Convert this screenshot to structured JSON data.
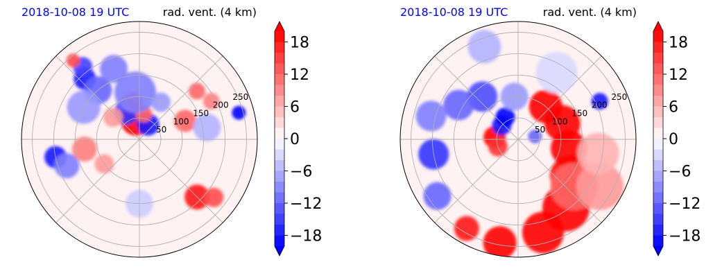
{
  "colors": {
    "pos_strong": "#ff0000",
    "neg_strong": "#0000ff",
    "neutral": "#fff2f2",
    "title_left": "#0000ff",
    "grid": "#b0b0b0"
  },
  "chart_data": [
    {
      "type": "heatmap",
      "projection": "polar",
      "title_left": "2018-10-08 19 UTC",
      "title_right": "rad. vent. (4 km)",
      "radial_ticks": [
        50,
        100,
        150,
        200,
        250
      ],
      "rmax": 275,
      "angular_grid_deg": 45,
      "colorbar": {
        "ticks": [
          18,
          12,
          6,
          0,
          -6,
          -12,
          -18
        ],
        "tick_labels": [
          "18",
          "12",
          "6",
          "0",
          "−6",
          "−12",
          "−18"
        ],
        "vmin": -20,
        "vmax": 20,
        "levels": 20,
        "extend": "both",
        "cmap": "bwr"
      },
      "features": [
        {
          "r": 45,
          "theta": 100,
          "value": 20,
          "size": 22
        },
        {
          "r": 55,
          "theta": 110,
          "value": 18,
          "size": 18
        },
        {
          "r": 40,
          "theta": 60,
          "value": -18,
          "size": 16
        },
        {
          "r": 70,
          "theta": 115,
          "value": -16,
          "size": 18
        },
        {
          "r": 90,
          "theta": 100,
          "value": 14,
          "size": 14
        },
        {
          "r": 60,
          "theta": 80,
          "value": 12,
          "size": 12
        },
        {
          "r": 110,
          "theta": 95,
          "value": -10,
          "size": 30
        },
        {
          "r": 190,
          "theta": 132,
          "value": -18,
          "size": 16
        },
        {
          "r": 215,
          "theta": 128,
          "value": -15,
          "size": 14
        },
        {
          "r": 240,
          "theta": 130,
          "value": 14,
          "size": 10
        },
        {
          "r": 150,
          "theta": 130,
          "value": -12,
          "size": 20
        },
        {
          "r": 175,
          "theta": 110,
          "value": -10,
          "size": 20
        },
        {
          "r": 150,
          "theta": 150,
          "value": -8,
          "size": 24
        },
        {
          "r": 200,
          "theta": 192,
          "value": -18,
          "size": 16
        },
        {
          "r": 180,
          "theta": 200,
          "value": -10,
          "size": 18
        },
        {
          "r": 130,
          "theta": 190,
          "value": 10,
          "size": 18
        },
        {
          "r": 100,
          "theta": 215,
          "value": 8,
          "size": 14
        },
        {
          "r": 115,
          "theta": 22,
          "value": 12,
          "size": 16
        },
        {
          "r": 175,
          "theta": 40,
          "value": 12,
          "size": 12
        },
        {
          "r": 190,
          "theta": 28,
          "value": 10,
          "size": 12
        },
        {
          "r": 240,
          "theta": 15,
          "value": -20,
          "size": 10
        },
        {
          "r": 160,
          "theta": 10,
          "value": -6,
          "size": 20
        },
        {
          "r": 190,
          "theta": 315,
          "value": 18,
          "size": 18
        },
        {
          "r": 220,
          "theta": 322,
          "value": 14,
          "size": 14
        },
        {
          "r": 150,
          "theta": 270,
          "value": -4,
          "size": 20
        },
        {
          "r": 80,
          "theta": 140,
          "value": 8,
          "size": 14
        },
        {
          "r": 100,
          "theta": 60,
          "value": -8,
          "size": 14
        }
      ]
    },
    {
      "type": "heatmap",
      "projection": "polar",
      "title_left": "2018-10-08 19 UTC",
      "title_right": "rad. vent. (4 km)",
      "radial_ticks": [
        50,
        100,
        150,
        200,
        250
      ],
      "rmax": 275,
      "angular_grid_deg": 45,
      "colorbar": {
        "ticks": [
          18,
          12,
          6,
          0,
          -6,
          -12,
          -18
        ],
        "tick_labels": [
          "18",
          "12",
          "6",
          "0",
          "−6",
          "−12",
          "−18"
        ],
        "vmin": -20,
        "vmax": 20,
        "levels": 20,
        "extend": "both",
        "cmap": "bwr"
      },
      "features": [
        {
          "r": 100,
          "theta": 50,
          "value": 20,
          "size": 24
        },
        {
          "r": 110,
          "theta": 20,
          "value": 20,
          "size": 26
        },
        {
          "r": 120,
          "theta": 350,
          "value": 20,
          "size": 26
        },
        {
          "r": 150,
          "theta": 325,
          "value": 20,
          "size": 30
        },
        {
          "r": 195,
          "theta": 305,
          "value": 20,
          "size": 34
        },
        {
          "r": 225,
          "theta": 285,
          "value": 20,
          "size": 30
        },
        {
          "r": 245,
          "theta": 260,
          "value": 20,
          "size": 24
        },
        {
          "r": 240,
          "theta": 240,
          "value": 18,
          "size": 18
        },
        {
          "r": 170,
          "theta": 320,
          "value": 12,
          "size": 34
        },
        {
          "r": 220,
          "theta": 330,
          "value": 8,
          "size": 34
        },
        {
          "r": 190,
          "theta": 350,
          "value": 6,
          "size": 30
        },
        {
          "r": 55,
          "theta": 175,
          "value": 20,
          "size": 16
        },
        {
          "r": 50,
          "theta": 200,
          "value": 16,
          "size": 14
        },
        {
          "r": 50,
          "theta": 140,
          "value": -18,
          "size": 14
        },
        {
          "r": 60,
          "theta": 120,
          "value": -20,
          "size": 14
        },
        {
          "r": 40,
          "theta": 10,
          "value": -12,
          "size": 10
        },
        {
          "r": 130,
          "theta": 130,
          "value": -14,
          "size": 22
        },
        {
          "r": 160,
          "theta": 150,
          "value": -12,
          "size": 22
        },
        {
          "r": 200,
          "theta": 190,
          "value": -16,
          "size": 22
        },
        {
          "r": 210,
          "theta": 165,
          "value": -10,
          "size": 22
        },
        {
          "r": 230,
          "theta": 215,
          "value": -12,
          "size": 20
        },
        {
          "r": 210,
          "theta": 25,
          "value": -18,
          "size": 12
        },
        {
          "r": 100,
          "theta": 95,
          "value": -8,
          "size": 20
        },
        {
          "r": 180,
          "theta": 60,
          "value": -3,
          "size": 30
        },
        {
          "r": 230,
          "theta": 110,
          "value": -6,
          "size": 24
        }
      ]
    }
  ]
}
